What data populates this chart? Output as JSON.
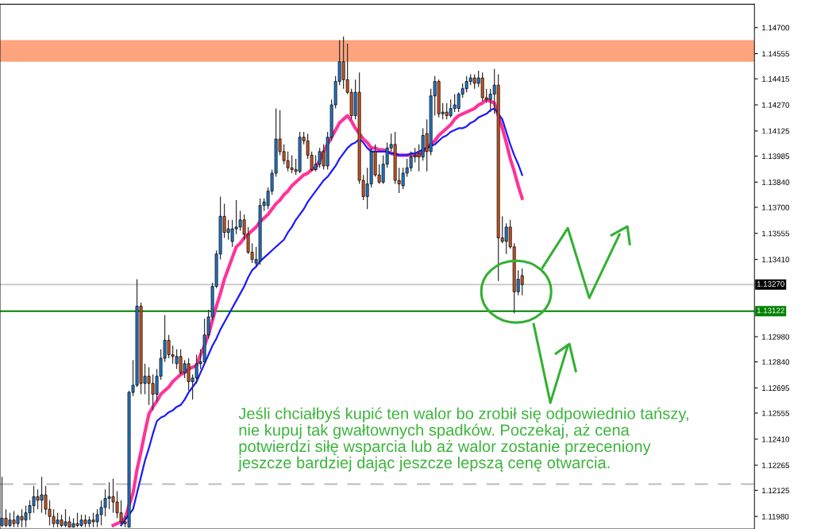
{
  "chart_data": {
    "type": "candlestick",
    "categories": [
      null,
      null,
      null,
      null,
      null,
      null,
      null,
      null,
      null,
      null,
      null,
      null,
      null,
      null,
      null,
      null,
      null,
      null,
      null,
      null,
      null,
      null,
      null,
      null,
      null,
      null,
      null,
      null,
      null,
      null,
      null,
      null,
      null,
      null,
      null,
      null,
      null,
      null,
      null,
      null,
      null,
      null,
      null,
      null,
      null,
      null,
      null,
      null,
      null,
      null,
      null,
      null,
      null,
      null,
      null,
      null,
      null,
      null,
      null,
      null,
      null,
      null,
      null,
      null,
      null,
      null,
      null,
      null,
      null,
      null,
      null,
      null,
      null,
      null,
      null,
      null,
      null,
      null,
      null,
      null,
      null,
      null,
      null,
      null,
      null,
      null,
      null,
      null,
      null,
      null,
      null,
      null,
      null,
      null,
      null,
      null,
      null,
      null,
      null,
      null,
      null,
      null,
      null,
      null,
      null,
      null,
      null,
      null,
      null,
      null,
      null,
      null,
      null,
      null,
      null,
      null,
      null,
      null,
      null,
      null,
      null,
      null,
      null,
      null,
      null,
      null,
      null,
      null,
      null,
      null,
      null,
      null,
      null,
      null,
      null,
      null,
      null,
      null,
      null,
      null,
      null,
      null,
      null,
      null,
      null,
      null,
      null,
      null,
      null,
      null,
      null,
      null,
      null,
      null,
      null,
      null,
      null,
      null,
      null,
      null,
      null,
      null,
      null,
      null,
      null,
      null,
      null,
      null,
      null,
      null,
      null,
      null,
      null,
      null,
      null,
      null,
      null,
      null,
      null,
      null,
      null,
      null,
      null,
      null,
      null,
      null,
      null,
      null,
      null,
      null
    ],
    "colors": [
      "#1f78d0",
      "#d2541c",
      "#1f78d0",
      "#d2541c",
      "#1f78d0",
      "#d2541c",
      "#1f78d0",
      "#1f78d0",
      "#1f78d0",
      "#d2541c",
      "#1f78d0",
      "#d2541c",
      "#d2541c",
      "#d2541c",
      "#1f78d0",
      "#d2541c",
      "#1f78d0",
      "#d2541c",
      "#1f78d0",
      "#d2541c",
      "#1f78d0",
      "#d2541c",
      "#1f78d0",
      "#d2541c",
      "#1f78d0",
      "#1f78d0",
      "#1f78d0",
      "#1f78d0",
      "#d2541c",
      "#d2541c",
      "#d2541c",
      "#d2541c",
      "#1f78d0",
      "#1f78d0",
      "#1f78d0",
      "#d2541c",
      "#1f78d0",
      "#d2541c",
      "#d2541c",
      "#1f78d0",
      "#1f78d0",
      "#1f78d0",
      "#d2541c",
      "#d2541c",
      "#1f78d0",
      "#d2541c",
      "#1f78d0",
      "#d2541c",
      "#1f78d0",
      "#1f78d0",
      "#1f78d0",
      "#1f78d0",
      "#1f78d0",
      "#1f78d0",
      "#1f78d0",
      "#1f78d0",
      "#d2541c",
      "#1f78d0",
      "#1f78d0",
      "#1f78d0",
      "#1f78d0",
      "#d2541c",
      "#d2541c",
      "#d2541c",
      "#1f78d0",
      "#1f78d0",
      "#1f78d0",
      "#1f78d0",
      "#1f78d0",
      "#1f78d0",
      "#d2541c",
      "#d2541c",
      "#d2541c",
      "#d2541c",
      "#d2541c",
      "#1f78d0",
      "#d2541c",
      "#d2541c",
      "#d2541c",
      "#1f78d0",
      "#1f78d0",
      "#d2541c",
      "#1f78d0",
      "#1f78d0",
      "#1f78d0",
      "#1f78d0",
      "#d2541c",
      "#d2541c",
      "#d2541c",
      "#1f78d0",
      "#d2541c",
      "#d2541c",
      "#1f78d0",
      "#1f78d0",
      "#d2541c",
      "#d2541c",
      "#1f78d0",
      "#1f78d0",
      "#1f78d0",
      "#d2541c",
      "#d2541c",
      "#1f78d0",
      "#1f78d0",
      "#1f78d0",
      "#1f78d0",
      "#d2541c",
      "#1f78d0",
      "#d2541c",
      "#1f78d0",
      "#1f78d0",
      "#d2541c",
      "#1f78d0",
      "#d2541c",
      "#1f78d0",
      "#1f78d0",
      "#1f78d0",
      "#1f78d0",
      "#1f78d0",
      "#1f78d0",
      "#d2541c",
      "#1f78d0",
      "#d2541c",
      "#d2541c",
      "#1f78d0",
      "#1f78d0",
      "#d2541c",
      "#d2541c",
      "#1f78d0",
      "#d2541c",
      "#d2541c",
      "#1f78d0",
      "#d2541c",
      null,
      null,
      null,
      null,
      null,
      null,
      null,
      null,
      null,
      null,
      null,
      null,
      null,
      null,
      null,
      null,
      null,
      null,
      null,
      null,
      null,
      null,
      null,
      null,
      null,
      null,
      null,
      null,
      null,
      null,
      null,
      null,
      null,
      null,
      null,
      null,
      null,
      null,
      null,
      null,
      null,
      null,
      null,
      null,
      null,
      null,
      null,
      null,
      null,
      null,
      null,
      null,
      null,
      null,
      null,
      null,
      null,
      null
    ],
    "ohlc": [
      [
        1.1193,
        1.122,
        1.1192,
        1.1197
      ],
      [
        1.1197,
        1.1202,
        1.1192,
        1.1193
      ],
      [
        1.1193,
        1.12,
        1.1192,
        1.1196
      ],
      [
        1.1196,
        1.1201,
        1.1192,
        1.1194
      ],
      [
        1.1194,
        1.1199,
        1.1192,
        1.1198
      ],
      [
        1.1198,
        1.1202,
        1.1192,
        1.1196
      ],
      [
        1.1196,
        1.1204,
        1.1192,
        1.12
      ],
      [
        1.12,
        1.1207,
        1.1196,
        1.1204
      ],
      [
        1.1204,
        1.1215,
        1.12,
        1.1209
      ],
      [
        1.1209,
        1.1213,
        1.1202,
        1.1207
      ],
      [
        1.1207,
        1.122,
        1.12,
        1.121
      ],
      [
        1.121,
        1.1215,
        1.1199,
        1.1202
      ],
      [
        1.1202,
        1.1207,
        1.1193,
        1.1198
      ],
      [
        1.1198,
        1.1202,
        1.1192,
        1.1194
      ],
      [
        1.1194,
        1.12,
        1.1192,
        1.1196
      ],
      [
        1.1196,
        1.1199,
        1.1192,
        1.1193
      ],
      [
        1.1193,
        1.1202,
        1.1192,
        1.1195
      ],
      [
        1.1195,
        1.1198,
        1.1192,
        1.1192
      ],
      [
        1.1192,
        1.1197,
        1.1192,
        1.1194
      ],
      [
        1.1194,
        1.12,
        1.1192,
        1.1193
      ],
      [
        1.1193,
        1.1199,
        1.1192,
        1.1196
      ],
      [
        1.1196,
        1.1199,
        1.1192,
        1.1194
      ],
      [
        1.1194,
        1.1198,
        1.1192,
        1.1196
      ],
      [
        1.1196,
        1.12,
        1.1192,
        1.1195
      ],
      [
        1.1195,
        1.1202,
        1.1192,
        1.1199
      ],
      [
        1.1199,
        1.1207,
        1.1193,
        1.1203
      ],
      [
        1.1203,
        1.1213,
        1.1198,
        1.1208
      ],
      [
        1.1208,
        1.1217,
        1.1202,
        1.1209
      ],
      [
        1.1209,
        1.1219,
        1.12,
        1.1206
      ],
      [
        1.1206,
        1.1212,
        1.1197,
        1.12
      ],
      [
        1.12,
        1.1207,
        1.1193,
        1.1195
      ],
      [
        1.1195,
        1.1198,
        1.1192,
        1.1194
      ],
      [
        1.1192,
        1.1268,
        1.1192,
        1.1267
      ],
      [
        1.1267,
        1.1285,
        1.1265,
        1.1271
      ],
      [
        1.1271,
        1.133,
        1.127,
        1.1315
      ],
      [
        1.1315,
        1.1317,
        1.1266,
        1.1272
      ],
      [
        1.1272,
        1.1283,
        1.1266,
        1.1276
      ],
      [
        1.1276,
        1.1281,
        1.126,
        1.1272
      ],
      [
        1.1272,
        1.1277,
        1.1257,
        1.1266
      ],
      [
        1.1266,
        1.128,
        1.1262,
        1.1276
      ],
      [
        1.1276,
        1.1291,
        1.1274,
        1.1286
      ],
      [
        1.1286,
        1.131,
        1.1284,
        1.1296
      ],
      [
        1.1296,
        1.1299,
        1.1286,
        1.1288
      ],
      [
        1.1288,
        1.1293,
        1.1283,
        1.1287
      ],
      [
        1.1283,
        1.1291,
        1.128,
        1.1287
      ],
      [
        1.1287,
        1.1291,
        1.1277,
        1.1278
      ],
      [
        1.1278,
        1.1285,
        1.1275,
        1.1283
      ],
      [
        1.1283,
        1.1286,
        1.1268,
        1.1273
      ],
      [
        1.1273,
        1.1277,
        1.1263,
        1.1275
      ],
      [
        1.1275,
        1.1288,
        1.1272,
        1.1283
      ],
      [
        1.1283,
        1.1291,
        1.128,
        1.1284
      ],
      [
        1.1284,
        1.1308,
        1.1283,
        1.1299
      ],
      [
        1.1299,
        1.1313,
        1.1297,
        1.1309
      ],
      [
        1.1309,
        1.1328,
        1.1307,
        1.1326
      ],
      [
        1.1326,
        1.1346,
        1.1325,
        1.1344
      ],
      [
        1.1344,
        1.1376,
        1.1341,
        1.1365
      ],
      [
        1.1365,
        1.1372,
        1.1353,
        1.1356
      ],
      [
        1.1356,
        1.1363,
        1.1352,
        1.1358
      ],
      [
        1.1351,
        1.1363,
        1.1348,
        1.1358
      ],
      [
        1.1358,
        1.1374,
        1.1355,
        1.1359
      ],
      [
        1.1359,
        1.1368,
        1.1357,
        1.1363
      ],
      [
        1.1363,
        1.1366,
        1.1352,
        1.1355
      ],
      [
        1.1355,
        1.1359,
        1.1344,
        1.1345
      ],
      [
        1.1345,
        1.135,
        1.1339,
        1.1341
      ],
      [
        1.1339,
        1.1348,
        1.1337,
        1.1341
      ],
      [
        1.134,
        1.1375,
        1.1338,
        1.1371
      ],
      [
        1.1371,
        1.1375,
        1.1368,
        1.1373
      ],
      [
        1.1371,
        1.1381,
        1.1369,
        1.1379
      ],
      [
        1.1379,
        1.1391,
        1.1377,
        1.1389
      ],
      [
        1.1389,
        1.1425,
        1.1387,
        1.1408
      ],
      [
        1.1408,
        1.1424,
        1.1399,
        1.1401
      ],
      [
        1.1401,
        1.1405,
        1.1394,
        1.1396
      ],
      [
        1.1396,
        1.1401,
        1.139,
        1.1392
      ],
      [
        1.1392,
        1.1399,
        1.1389,
        1.1391
      ],
      [
        1.1391,
        1.1397,
        1.1388,
        1.139
      ],
      [
        1.139,
        1.1412,
        1.1389,
        1.1409
      ],
      [
        1.1409,
        1.1412,
        1.1405,
        1.1407
      ],
      [
        1.1407,
        1.1411,
        1.1397,
        1.1399
      ],
      [
        1.1399,
        1.1401,
        1.139,
        1.1391
      ],
      [
        1.1391,
        1.1399,
        1.139,
        1.1394
      ],
      [
        1.1394,
        1.1403,
        1.1392,
        1.1401
      ],
      [
        1.1401,
        1.1405,
        1.1391,
        1.1393
      ],
      [
        1.1393,
        1.1412,
        1.1391,
        1.1409
      ],
      [
        1.1409,
        1.143,
        1.1407,
        1.1427
      ],
      [
        1.1427,
        1.1443,
        1.1425,
        1.144
      ],
      [
        1.144,
        1.1463,
        1.1438,
        1.1451
      ],
      [
        1.1451,
        1.1465,
        1.1436,
        1.1441
      ],
      [
        1.1441,
        1.1461,
        1.1433,
        1.1434
      ],
      [
        1.1434,
        1.1436,
        1.1419,
        1.1421
      ],
      [
        1.1421,
        1.1441,
        1.1419,
        1.1434
      ],
      [
        1.1434,
        1.1445,
        1.1383,
        1.1385
      ],
      [
        1.1385,
        1.1388,
        1.1374,
        1.1376
      ],
      [
        1.1376,
        1.1392,
        1.1369,
        1.1383
      ],
      [
        1.1383,
        1.1403,
        1.1381,
        1.1401
      ],
      [
        1.1401,
        1.1405,
        1.1387,
        1.1388
      ],
      [
        1.1388,
        1.1394,
        1.1383,
        1.1384
      ],
      [
        1.1384,
        1.1399,
        1.1383,
        1.1394
      ],
      [
        1.1394,
        1.1406,
        1.1392,
        1.1403
      ],
      [
        1.1403,
        1.1411,
        1.1401,
        1.1405
      ],
      [
        1.1405,
        1.1412,
        1.1383,
        1.1385
      ],
      [
        1.1385,
        1.1392,
        1.1378,
        1.1383
      ],
      [
        1.1382,
        1.1392,
        1.138,
        1.1389
      ],
      [
        1.1389,
        1.1397,
        1.1387,
        1.1392
      ],
      [
        1.1392,
        1.1401,
        1.139,
        1.1398
      ],
      [
        1.1398,
        1.1403,
        1.1395,
        1.1399
      ],
      [
        1.14,
        1.1405,
        1.139,
        1.1398
      ],
      [
        1.1398,
        1.1414,
        1.1396,
        1.141
      ],
      [
        1.1411,
        1.1419,
        1.139,
        1.1401
      ],
      [
        1.1401,
        1.1436,
        1.1399,
        1.1432
      ],
      [
        1.1432,
        1.1443,
        1.1421,
        1.144
      ],
      [
        1.144,
        1.1441,
        1.142,
        1.1422
      ],
      [
        1.1422,
        1.1428,
        1.1419,
        1.1423
      ],
      [
        1.1423,
        1.1428,
        1.1419,
        1.1421
      ],
      [
        1.1421,
        1.143,
        1.142,
        1.1425
      ],
      [
        1.1425,
        1.1433,
        1.1423,
        1.1427
      ],
      [
        1.1425,
        1.1434,
        1.1423,
        1.1433
      ],
      [
        1.1433,
        1.1439,
        1.1431,
        1.1436
      ],
      [
        1.1436,
        1.1443,
        1.1434,
        1.144
      ],
      [
        1.144,
        1.1444,
        1.1438,
        1.1442
      ],
      [
        1.1442,
        1.1444,
        1.1436,
        1.1439
      ],
      [
        1.1439,
        1.1446,
        1.1437,
        1.1442
      ],
      [
        1.1442,
        1.1445,
        1.1429,
        1.1431
      ],
      [
        1.1431,
        1.1436,
        1.1428,
        1.143
      ],
      [
        1.143,
        1.1436,
        1.1423,
        1.1433
      ],
      [
        1.1433,
        1.1447,
        1.1422,
        1.1438
      ],
      [
        1.1438,
        1.1444,
        1.1329,
        1.1353
      ],
      [
        1.1353,
        1.1365,
        1.135,
        1.1351
      ],
      [
        1.1351,
        1.1361,
        1.1344,
        1.1359
      ],
      [
        1.1359,
        1.1363,
        1.1347,
        1.1348
      ],
      [
        1.1348,
        1.135,
        1.1311,
        1.1323
      ],
      [
        1.1323,
        1.1335,
        1.1321,
        1.133
      ],
      [
        1.1332,
        1.1336,
        1.1321,
        1.1327
      ],
      null,
      null,
      null,
      null,
      null,
      null,
      null,
      null,
      null,
      null,
      null,
      null,
      null,
      null,
      null,
      null,
      null,
      null,
      null,
      null,
      null,
      null,
      null,
      null,
      null,
      null,
      null,
      null,
      null,
      null,
      null,
      null,
      null,
      null,
      null,
      null,
      null,
      null,
      null,
      null,
      null,
      null,
      null,
      null,
      null,
      null,
      null,
      null,
      null,
      null,
      null,
      null,
      null,
      null,
      null,
      null,
      null,
      null
    ],
    "series": [
      {
        "type": "line",
        "color": "#ff3399",
        "values": [
          null,
          null,
          null,
          null,
          null,
          null,
          null,
          null,
          null,
          null,
          null,
          null,
          null,
          null,
          null,
          null,
          null,
          null,
          null,
          null,
          null,
          null,
          null,
          null,
          null,
          null,
          null,
          null,
          1.1193,
          1.1194,
          1.1195,
          1.1197,
          null,
          1.1211,
          1.1224,
          1.1234,
          1.1245,
          1.1255,
          1.1259,
          1.1262,
          1.1266,
          1.1268,
          1.127,
          1.1273,
          1.1275,
          1.1277,
          1.1278,
          1.128,
          1.1281,
          1.1282,
          1.1288,
          1.1293,
          1.1299,
          1.1307,
          1.1315,
          1.1322,
          1.133,
          1.1336,
          1.1342,
          1.1348,
          1.135,
          1.1353,
          1.1355,
          1.1357,
          1.1359,
          1.1362,
          1.1364,
          1.1366,
          1.1369,
          1.1372,
          1.1374,
          1.1377,
          1.1379,
          1.1382,
          1.1384,
          1.1386,
          1.1388,
          1.1389,
          1.1391,
          1.1392,
          1.1396,
          1.1401,
          1.1405,
          1.1409,
          1.1413,
          1.1417,
          1.1419,
          1.1421,
          1.1418,
          1.1414,
          1.1411,
          1.1408,
          1.1406,
          1.1403,
          1.1403,
          1.1402,
          1.1402,
          1.1401,
          1.14,
          null,
          1.1399,
          1.1399,
          1.1399,
          1.1399,
          1.1399,
          1.1399,
          1.1401,
          null,
          1.1405,
          1.1407,
          1.141,
          1.1412,
          1.1414,
          1.1416,
          1.1419,
          1.1421,
          1.1422,
          1.1423,
          1.1424,
          1.1425,
          1.1427,
          1.1428,
          1.143,
          1.1429,
          1.1428,
          null,
          1.1414,
          1.1406,
          1.1397,
          1.139,
          1.1382,
          1.1375,
          null,
          null,
          null,
          null,
          null,
          null,
          null,
          null,
          null,
          null,
          null,
          null,
          null,
          null,
          null,
          null,
          null,
          null,
          null,
          null,
          null,
          null,
          null,
          null,
          null,
          null,
          null,
          null,
          null,
          null,
          null,
          null,
          null,
          null,
          null,
          null,
          null,
          null,
          null,
          null,
          null,
          null,
          null,
          null,
          null,
          null,
          null,
          null,
          null,
          null,
          null,
          null,
          null,
          null,
          null,
          null,
          null,
          null
        ]
      },
      {
        "type": "line",
        "color": "#1a1aff",
        "values": [
          null,
          null,
          null,
          null,
          null,
          null,
          null,
          null,
          null,
          null,
          null,
          null,
          null,
          null,
          null,
          null,
          null,
          null,
          null,
          null,
          null,
          null,
          null,
          null,
          null,
          null,
          null,
          null,
          null,
          null,
          1.1193,
          1.1196,
          1.1199,
          1.1202,
          1.1211,
          1.122,
          1.1229,
          1.1236,
          1.1244,
          1.1251,
          1.1253,
          1.1254,
          1.1256,
          1.1257,
          1.1259,
          1.126,
          1.1263,
          1.1267,
          1.127,
          1.1273,
          1.1278,
          1.1283,
          1.1288,
          1.1293,
          1.1297,
          1.1302,
          1.1306,
          1.131,
          1.1314,
          1.1318,
          1.1322,
          1.1326,
          1.1331,
          1.1335,
          1.1337,
          1.134,
          1.1342,
          1.1344,
          1.1346,
          1.1348,
          1.135,
          1.1352,
          1.1356,
          1.1359,
          1.1363,
          1.1366,
          1.1369,
          1.1373,
          1.1376,
          1.1379,
          1.1382,
          1.1385,
          1.1387,
          1.139,
          1.1393,
          1.1397,
          1.14,
          1.1403,
          1.1405,
          1.1406,
          1.1408,
          1.1406,
          1.1403,
          1.1401,
          1.1401,
          1.1401,
          1.1401,
          1.1401,
          1.14,
          1.14,
          1.1399,
          1.1399,
          1.1399,
          1.14,
          1.14,
          1.1401,
          1.1402,
          null,
          1.1404,
          1.1405,
          1.1407,
          1.1409,
          1.141,
          1.1412,
          1.1413,
          1.1414,
          1.1414,
          1.1415,
          1.1417,
          1.1418,
          1.142,
          1.1421,
          1.1422,
          1.1424,
          1.1425,
          1.1422,
          1.1419,
          1.1412,
          1.1405,
          1.1399,
          1.1394,
          1.1388,
          null,
          null,
          null,
          null,
          null,
          null,
          null,
          null,
          null,
          null,
          null,
          null,
          null,
          null,
          null,
          null,
          null,
          null,
          null,
          null,
          null,
          null,
          null,
          null,
          null,
          null,
          null,
          null,
          null,
          null,
          null,
          null,
          null,
          null,
          null,
          null,
          null,
          null,
          null,
          null,
          null,
          null,
          null,
          null,
          null,
          null,
          null,
          null,
          null,
          null,
          null,
          null,
          null,
          null,
          null,
          null,
          null,
          null
        ]
      }
    ],
    "ylim": [
      1.1191,
      1.1483
    ],
    "yticks": [
      {
        "value": 1.147,
        "label": "1.14700"
      },
      {
        "value": 1.14555,
        "label": "1.14555"
      },
      {
        "value": 1.14415,
        "label": "1.14415"
      },
      {
        "value": 1.1427,
        "label": "1.14270"
      },
      {
        "value": 1.14125,
        "label": "1.14125"
      },
      {
        "value": 1.13985,
        "label": "1.13985"
      },
      {
        "value": 1.1384,
        "label": "1.13840"
      },
      {
        "value": 1.137,
        "label": "1.13700"
      },
      {
        "value": 1.13555,
        "label": "1.13555"
      },
      {
        "value": 1.1341,
        "label": "1.13410"
      },
      {
        "value": 1.1298,
        "label": "1.12980"
      },
      {
        "value": 1.1284,
        "label": "1.12840"
      },
      {
        "value": 1.12695,
        "label": "1.12695"
      },
      {
        "value": 1.12555,
        "label": "1.12555"
      },
      {
        "value": 1.1241,
        "label": "1.12410"
      },
      {
        "value": 1.12265,
        "label": "1.12265"
      },
      {
        "value": 1.12125,
        "label": "1.12125"
      },
      {
        "value": 1.1198,
        "label": "1.11980"
      }
    ],
    "tick_labels": "y",
    "ref_lines": [
      {
        "axis": "y",
        "value": 1.1327,
        "label": "1.13270",
        "color": "#cccccc"
      },
      {
        "axis": "y",
        "value": 1.13122,
        "label": "1.13122",
        "color": "#008000"
      },
      {
        "axis": "y",
        "value": 1.1216,
        "color": "#bbbbbb",
        "line_style": "dashed"
      }
    ],
    "bands": [
      {
        "axis": "y",
        "from": 1.1451,
        "to": 1.1463,
        "color": "#fda47e"
      }
    ],
    "annotations": [
      "Jeśli chciałbyś kupić ten walor bo zrobił się odpowiednio tańszy,\nnie kupuj tak gwałtownych spadków. Poczekaj, aż cena\npotwierdzi siłę wsparcia lub aż walor zostanie przeceniony\njeszcze bardziej dając jeszcze lepszą cenę otwarcia."
    ]
  }
}
